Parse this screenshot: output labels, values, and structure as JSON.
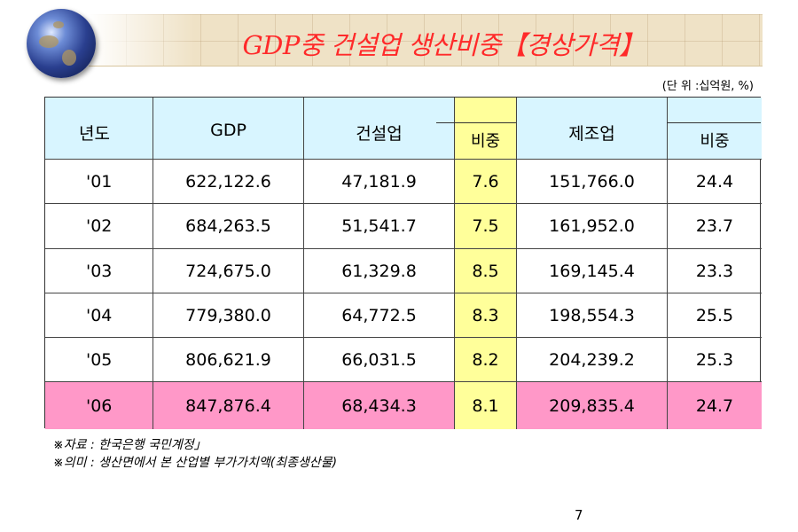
{
  "title": "GDP중 건설업 생산비중【경상가격】",
  "unit": "(단 위 :십억원, %)",
  "table": {
    "headers": {
      "year": "년도",
      "gdp": "GDP",
      "construction": "건설업",
      "construction_share": "비중",
      "manufacturing": "제조업",
      "manufacturing_share": "비중"
    },
    "rows": [
      {
        "year": "'01",
        "gdp": "622,122.6",
        "construction": "47,181.9",
        "construction_share": "7.6",
        "manufacturing": "151,766.0",
        "manufacturing_share": "24.4"
      },
      {
        "year": "'02",
        "gdp": "684,263.5",
        "construction": "51,541.7",
        "construction_share": "7.5",
        "manufacturing": "161,952.0",
        "manufacturing_share": "23.7"
      },
      {
        "year": "'03",
        "gdp": "724,675.0",
        "construction": "61,329.8",
        "construction_share": "8.5",
        "manufacturing": "169,145.4",
        "manufacturing_share": "23.3"
      },
      {
        "year": "'04",
        "gdp": "779,380.0",
        "construction": "64,772.5",
        "construction_share": "8.3",
        "manufacturing": "198,554.3",
        "manufacturing_share": "25.5"
      },
      {
        "year": "'05",
        "gdp": "806,621.9",
        "construction": "66,031.5",
        "construction_share": "8.2",
        "manufacturing": "204,239.2",
        "manufacturing_share": "25.3"
      },
      {
        "year": "'06",
        "gdp": "847,876.4",
        "construction": "68,434.3",
        "construction_share": "8.1",
        "manufacturing": "209,835.4",
        "manufacturing_share": "24.7"
      }
    ]
  },
  "notes": [
    "※자료 : 한국은행 국민계정」",
    "※의미 : 생산면에서 본 산업별 부가가치액(최종생산물)"
  ],
  "page_number": "7",
  "colors": {
    "title": "#ff2a2a",
    "header_bg": "#d8f5ff",
    "share_column_bg": "#ffff9a",
    "highlight_row_bg": "#ff98c8"
  }
}
